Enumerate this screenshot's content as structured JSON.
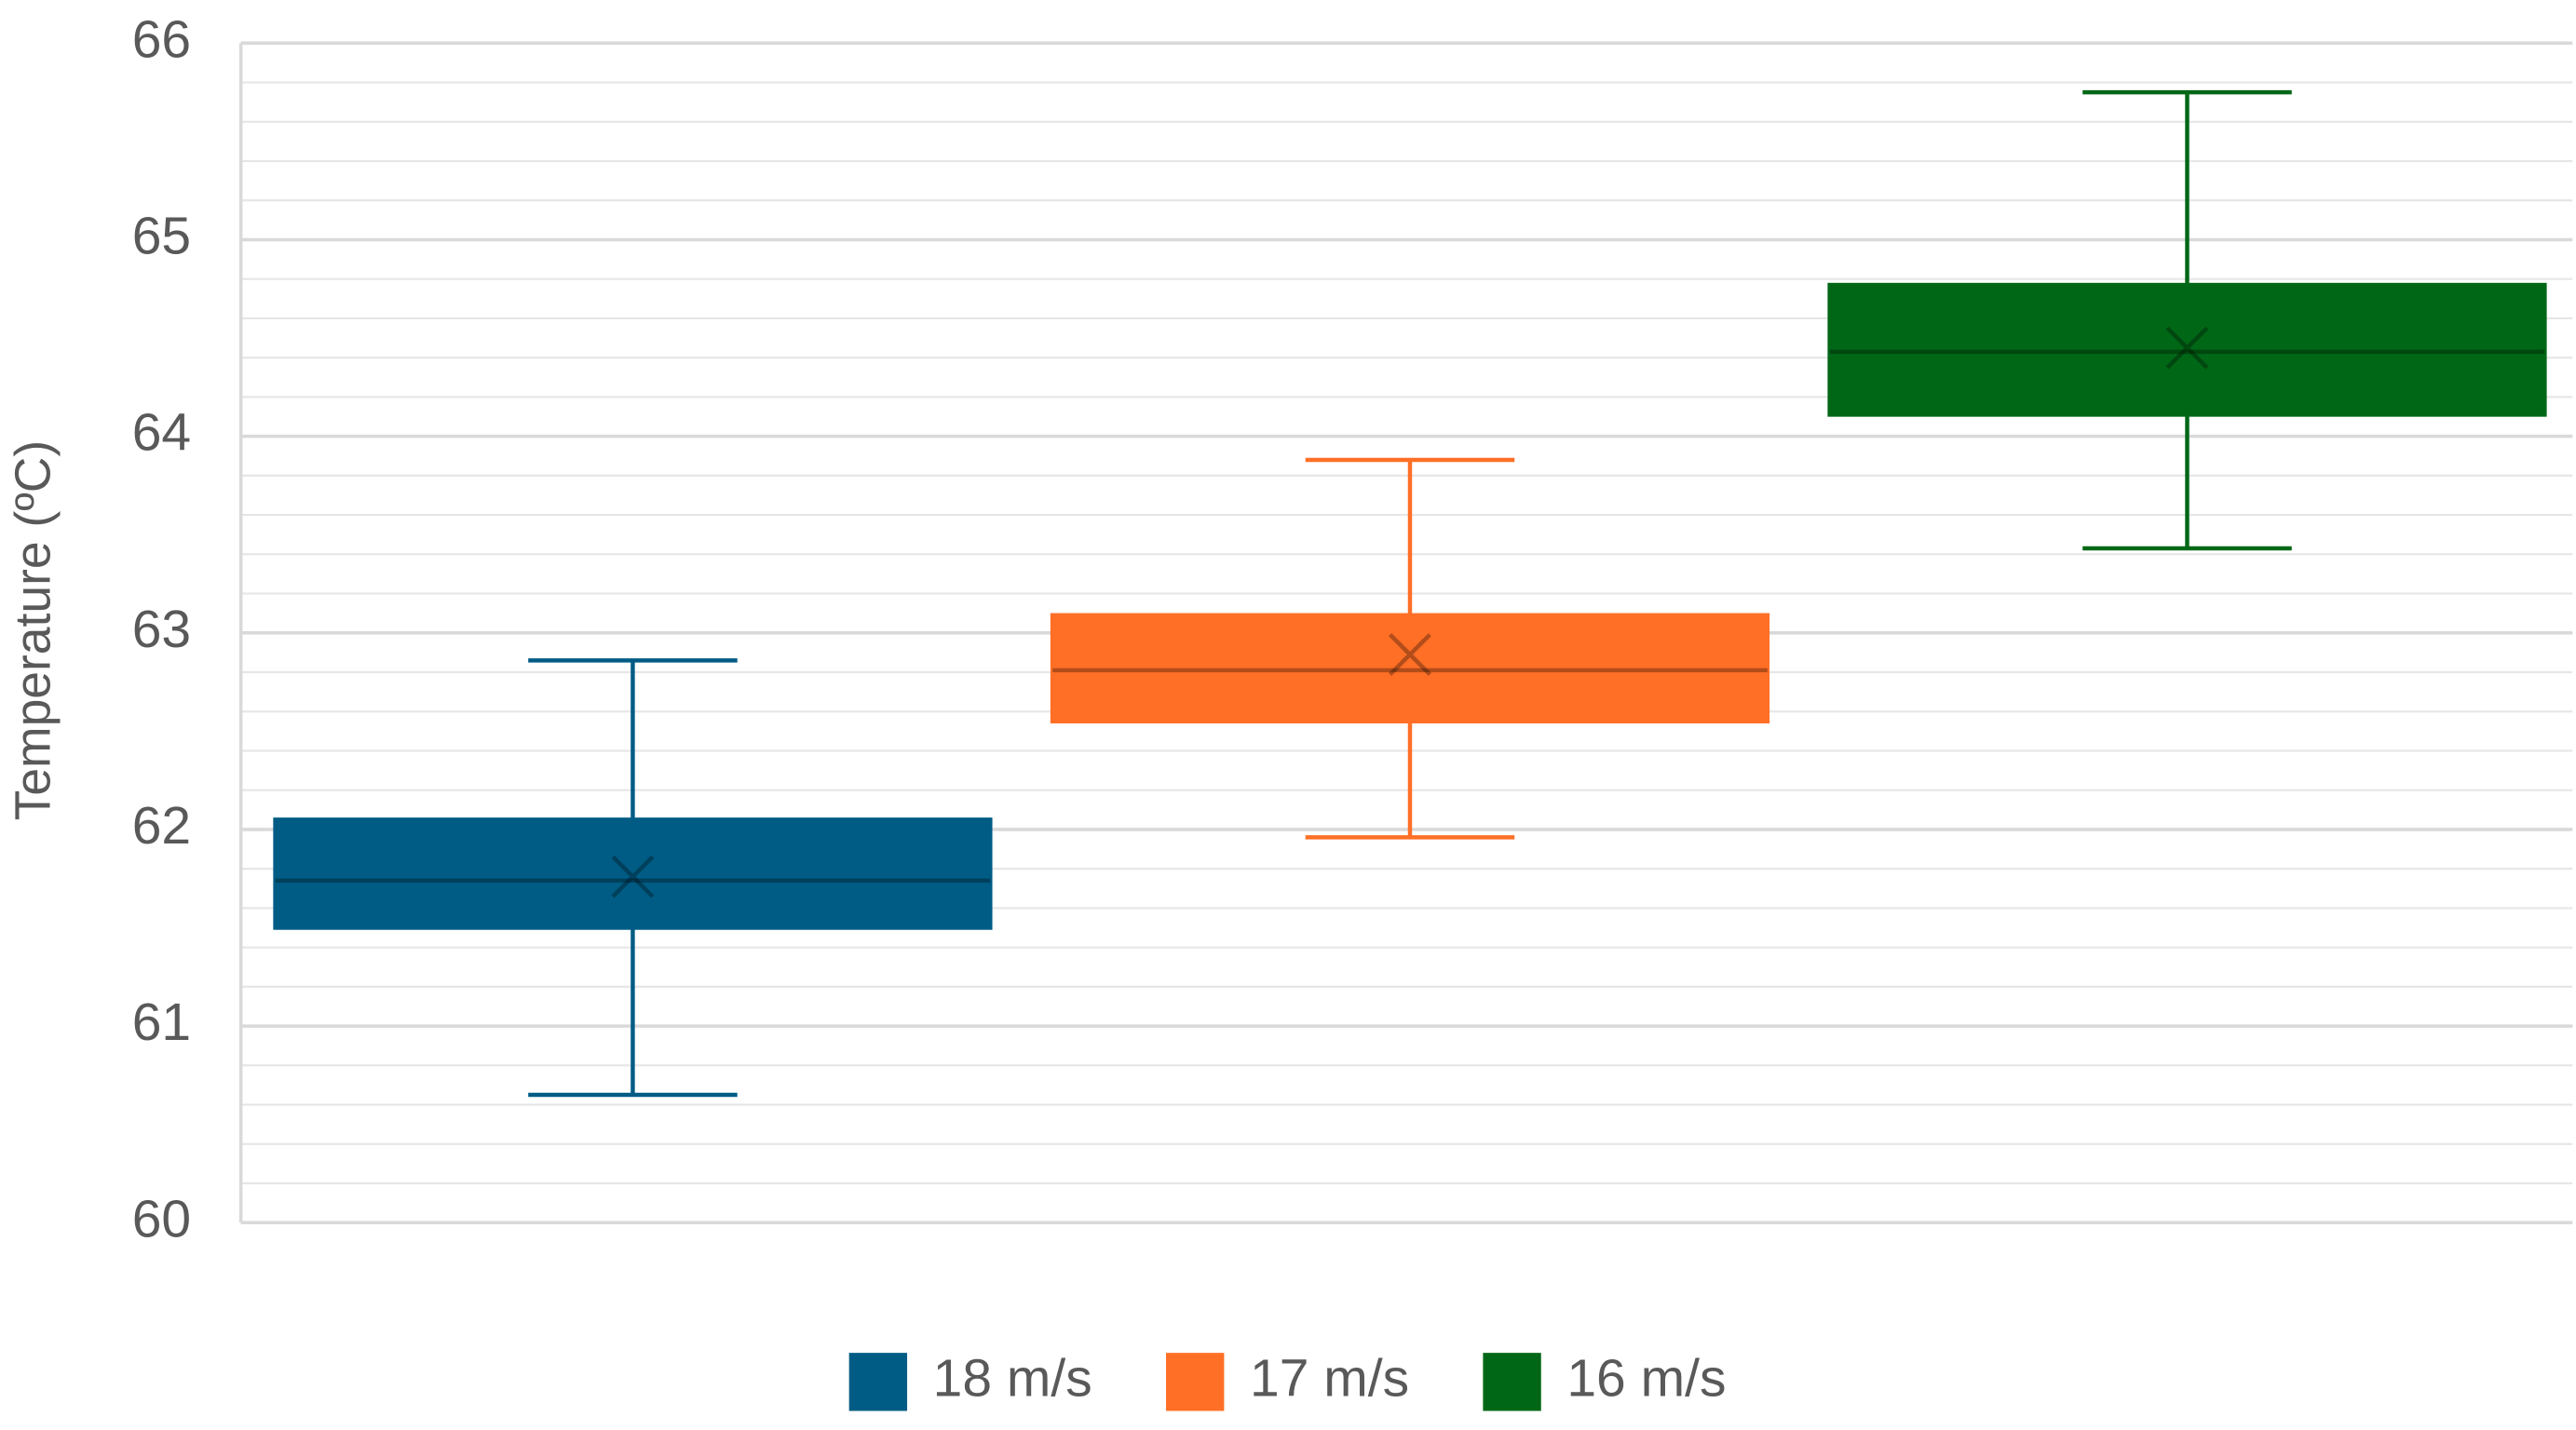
{
  "chart_data": {
    "type": "box",
    "y_label": "Temperature (ºC)",
    "ylim": [
      60,
      66
    ],
    "yticks": [
      60,
      61,
      62,
      63,
      64,
      65,
      66
    ],
    "grid": true,
    "minor_grid_step": 0.2,
    "legend": "bottom",
    "series": [
      {
        "name": "18 m/s",
        "color": "#005c85",
        "min": 60.65,
        "q1": 61.5,
        "median": 61.74,
        "q3": 62.05,
        "max": 62.86,
        "mean": 61.76
      },
      {
        "name": "17 m/s",
        "color": "#ff6f26",
        "min": 61.96,
        "q1": 62.55,
        "median": 62.81,
        "q3": 63.09,
        "max": 63.88,
        "mean": 62.89
      },
      {
        "name": "16 m/s",
        "color": "#006716",
        "min": 63.43,
        "q1": 64.11,
        "median": 64.43,
        "q3": 64.77,
        "max": 65.75,
        "mean": 64.45
      }
    ]
  }
}
